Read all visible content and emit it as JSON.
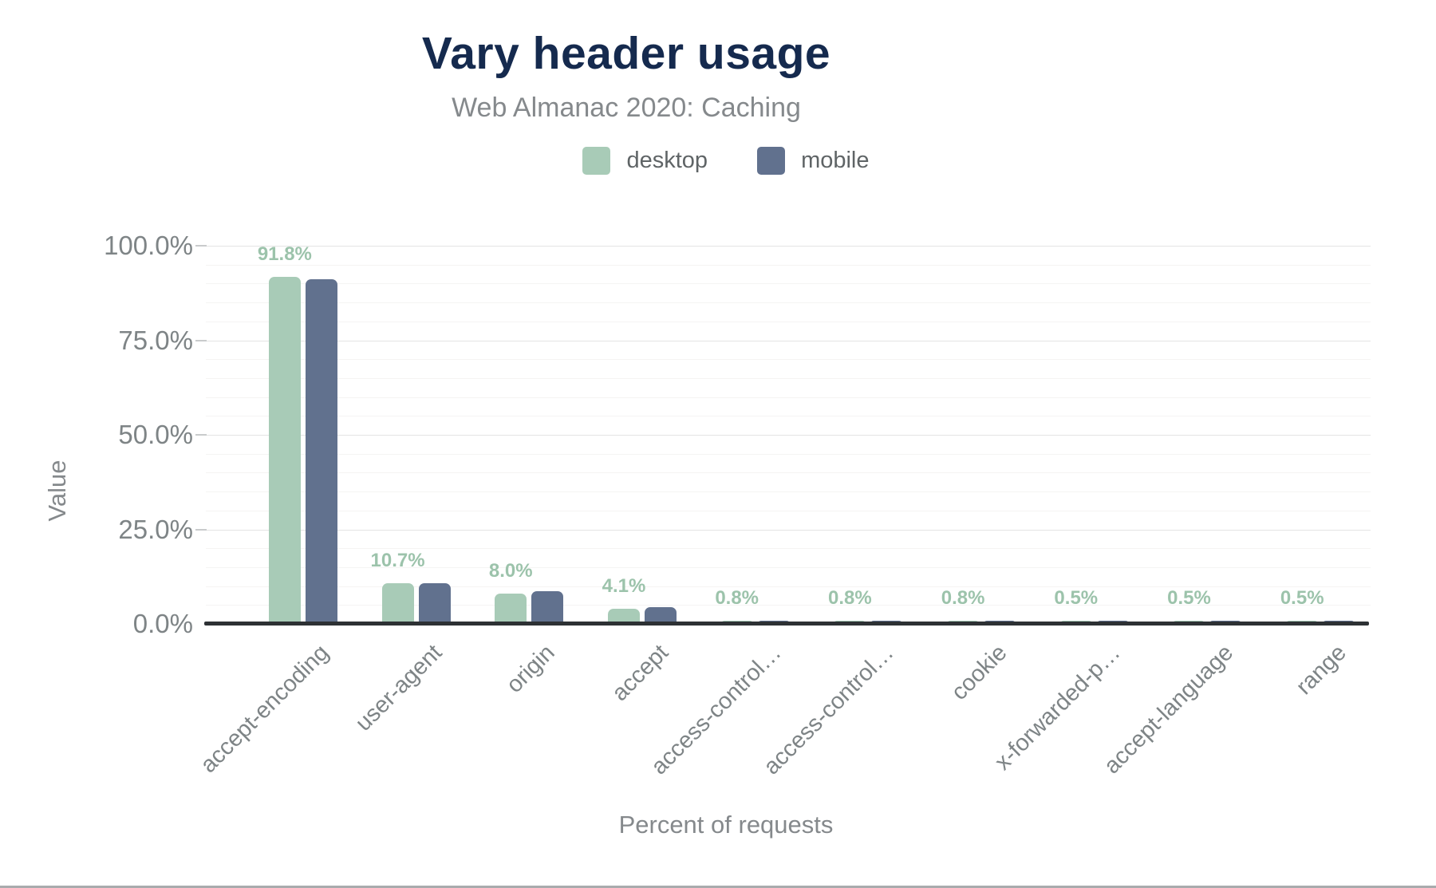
{
  "chart_data": {
    "type": "bar",
    "title": "Vary header usage",
    "subtitle": "Web Almanac 2020: Caching",
    "xlabel": "Percent of requests",
    "ylabel": "Value",
    "ylim": [
      0,
      100
    ],
    "grid": {
      "major_step": 25,
      "minor_step": 5,
      "minor_visible": true
    },
    "legend_position": "top",
    "y_ticks": [
      {
        "value": 0,
        "label": "0.0%"
      },
      {
        "value": 25,
        "label": "25.0%"
      },
      {
        "value": 50,
        "label": "50.0%"
      },
      {
        "value": 75,
        "label": "75.0%"
      },
      {
        "value": 100,
        "label": "100.0%"
      }
    ],
    "categories": [
      "accept-encoding",
      "user-agent",
      "origin",
      "accept",
      "access-control…",
      "access-control…",
      "cookie",
      "x-forwarded-p…",
      "accept-language",
      "range"
    ],
    "series": [
      {
        "name": "desktop",
        "color": "#a8cbb7",
        "values": [
          91.8,
          10.7,
          8.0,
          4.1,
          0.8,
          0.8,
          0.8,
          0.5,
          0.5,
          0.5
        ]
      },
      {
        "name": "mobile",
        "color": "#61718e",
        "values": [
          91.1,
          10.8,
          8.6,
          4.4,
          0.9,
          0.9,
          0.9,
          0.6,
          0.6,
          0.6
        ]
      }
    ],
    "data_labels": {
      "series": "desktop",
      "values": [
        "91.8%",
        "10.7%",
        "8.0%",
        "4.1%",
        "0.8%",
        "0.8%",
        "0.8%",
        "0.5%",
        "0.5%",
        "0.5%"
      ],
      "color": "#9cc3ab"
    }
  },
  "colors": {
    "page_bg": "#ffffff",
    "title": "#152a4e",
    "subtitle": "#85898c",
    "axis_text": "#7e8486",
    "legend_text": "#5f6466",
    "data_label": "#9cc3ab",
    "grid_major": "#e4e4e4",
    "grid_minor": "#f5f4f3",
    "axis_line": "#2d3134",
    "tick": "#c9cbcc",
    "bottom_border": "#a9abad",
    "desktop": "#a8cbb7",
    "mobile": "#61718e"
  }
}
